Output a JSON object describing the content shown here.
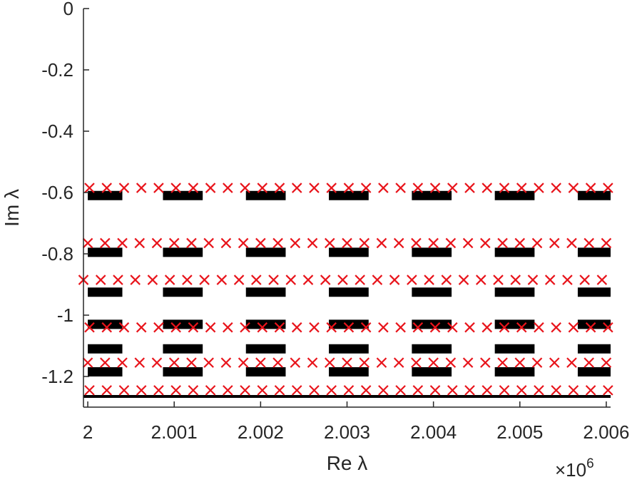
{
  "chart_data": {
    "type": "scatter",
    "xlabel": "Re λ",
    "ylabel": "Im λ",
    "x_exponent_label": "×10",
    "x_exponent_power": "6",
    "x_scale_factor": 1000000,
    "xlim": [
      1999950,
      2006050
    ],
    "ylim": [
      -1.3,
      0
    ],
    "xticks": [
      2000000,
      2001000,
      2002000,
      2003000,
      2004000,
      2005000,
      2006000
    ],
    "xtick_labels": [
      "2",
      "2.001",
      "2.002",
      "2.003",
      "2.004",
      "2.005",
      "2.006"
    ],
    "yticks": [
      0,
      -0.2,
      -0.4,
      -0.6,
      -0.8,
      -1,
      -1.2
    ],
    "ytick_labels": [
      "0",
      "-0.2",
      "-0.4",
      "-0.6",
      "-0.8",
      "-1",
      "-1.2"
    ],
    "grid": false,
    "series": [
      {
        "marker": "segment",
        "color": "#000000",
        "segment_groups": [
          [
            2000000,
            2000400
          ],
          [
            2000870,
            2001330
          ],
          [
            2001830,
            2002290
          ],
          [
            2002790,
            2003250
          ],
          [
            2003750,
            2004210
          ],
          [
            2004710,
            2005170
          ],
          [
            2005670,
            2006050
          ]
        ],
        "y_levels": [
          -0.61,
          -0.795,
          -0.925,
          -1.03,
          -1.11,
          -1.185
        ]
      },
      {
        "marker": "line",
        "color": "#000000",
        "x": [
          1999950,
          2006050
        ],
        "y": [
          -1.265,
          -1.265
        ]
      },
      {
        "marker": "x",
        "color": "#e8141b",
        "rows": [
          {
            "y": -0.585,
            "x_start": 2000020,
            "x_step": 200,
            "count": 31
          },
          {
            "y": -0.765,
            "x_start": 2000000,
            "x_step": 200,
            "count": 31
          },
          {
            "y": -0.885,
            "x_start": 1999950,
            "x_step": 200,
            "count": 31
          },
          {
            "y": -1.04,
            "x_start": 2000020,
            "x_step": 200,
            "count": 31
          },
          {
            "y": -1.155,
            "x_start": 2000000,
            "x_step": 200,
            "count": 31
          },
          {
            "y": -1.245,
            "x_start": 2000020,
            "x_step": 200,
            "count": 31
          }
        ]
      }
    ]
  }
}
